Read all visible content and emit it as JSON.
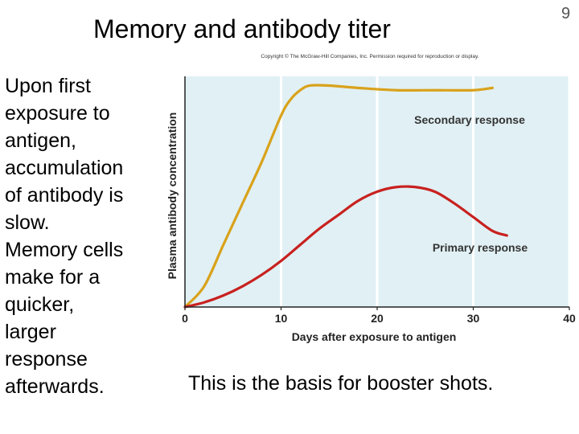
{
  "slide": {
    "title": "Memory and antibody titer",
    "number": "9",
    "copyright": "Copyright © The McGraw-Hill Companies, Inc. Permission required for reproduction or display.",
    "body_lines": [
      "Upon first",
      "exposure to",
      "antigen,",
      "accumulation",
      "of antibody is",
      "slow.",
      "Memory cells",
      "make for a",
      "quicker,",
      "larger",
      "response",
      "afterwards."
    ],
    "footnote": "This is the basis for booster shots."
  },
  "chart_data": {
    "type": "line",
    "title": "",
    "xlabel": "Days after exposure to antigen",
    "ylabel": "Plasma antibody concentration",
    "xlim": [
      0,
      40
    ],
    "ylim": [
      0,
      1
    ],
    "xticks": [
      0,
      10,
      20,
      30,
      40
    ],
    "grid": "vertical",
    "background": "#e1f0f4",
    "series": [
      {
        "name": "Secondary response",
        "color": "#d9a21b",
        "x": [
          0,
          2,
          4,
          6,
          8,
          10,
          11,
          12,
          13,
          15,
          18,
          22,
          26,
          30,
          32
        ],
        "y": [
          0,
          0.09,
          0.27,
          0.45,
          0.63,
          0.83,
          0.9,
          0.94,
          0.96,
          0.96,
          0.95,
          0.94,
          0.94,
          0.94,
          0.95
        ]
      },
      {
        "name": "Primary response",
        "color": "#c8211f",
        "x": [
          0,
          2,
          4,
          6,
          8,
          10,
          12,
          14,
          16,
          18,
          20,
          22,
          24,
          26,
          28,
          30,
          32,
          33.5
        ],
        "y": [
          0,
          0.02,
          0.05,
          0.09,
          0.14,
          0.2,
          0.27,
          0.34,
          0.4,
          0.46,
          0.5,
          0.52,
          0.52,
          0.5,
          0.45,
          0.39,
          0.33,
          0.31
        ]
      }
    ]
  }
}
